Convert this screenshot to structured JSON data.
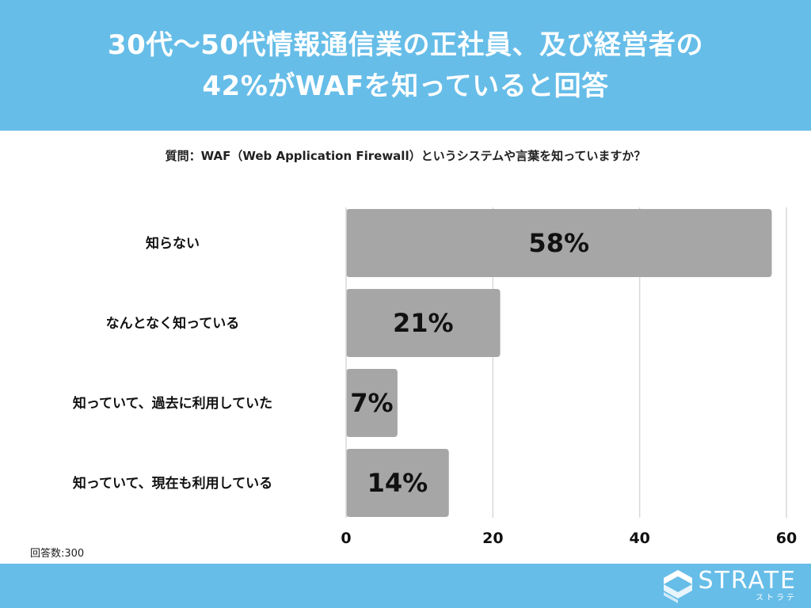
{
  "header": {
    "title_line1": "30代〜50代情報通信業の正社員、及び経営者の",
    "title_line2": "42%がWAFを知っていると回答"
  },
  "question": "質問：WAF（Web Application Firewall）というシステムや言葉を知っていますか？",
  "respondents": "回答数:300",
  "logo": {
    "main": "STRATE",
    "sub": "ストラテ",
    "icon": "strate-logo-icon"
  },
  "colors": {
    "header_bg": "#66bde8",
    "bar": "#a6a6a6",
    "grid": "#d9d9d9"
  },
  "chart_data": {
    "type": "bar",
    "orientation": "horizontal",
    "categories": [
      "知らない",
      "なんとなく知っている",
      "知っていて、過去に利用していた",
      "知っていて、現在も利用している"
    ],
    "values": [
      58,
      21,
      7,
      14
    ],
    "data_labels": [
      "58%",
      "21%",
      "7%",
      "14%"
    ],
    "xlim": [
      0,
      60
    ],
    "xticks": [
      0,
      20,
      40,
      60
    ],
    "title": "",
    "xlabel": "",
    "ylabel": "",
    "grid": true
  }
}
